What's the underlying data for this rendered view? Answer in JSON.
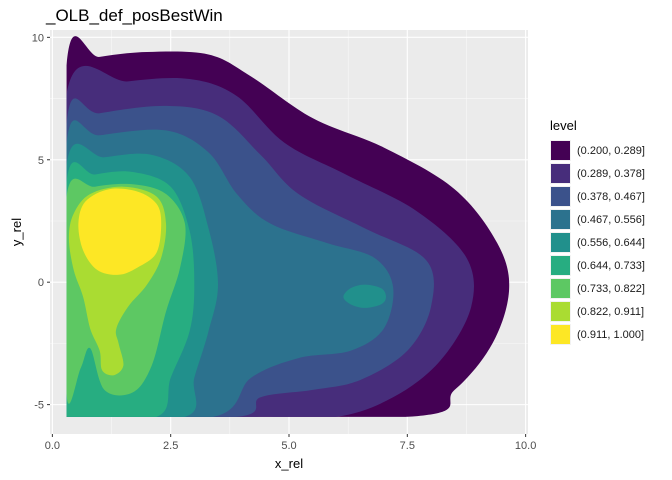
{
  "chart_data": {
    "type": "contour",
    "title": "_OLB_def_posBestWin",
    "xlabel": "x_rel",
    "ylabel": "y_rel",
    "xlim": [
      -0.05,
      10.05
    ],
    "ylim": [
      -6.2,
      10.3
    ],
    "x_ticks": [
      {
        "value": 0.0,
        "label": "0.0"
      },
      {
        "value": 2.5,
        "label": "2.5"
      },
      {
        "value": 5.0,
        "label": "5.0"
      },
      {
        "value": 7.5,
        "label": "7.5"
      },
      {
        "value": 10.0,
        "label": "10.0"
      }
    ],
    "y_ticks": [
      {
        "value": -5,
        "label": "-5"
      },
      {
        "value": 0,
        "label": "0"
      },
      {
        "value": 5,
        "label": "5"
      },
      {
        "value": 10,
        "label": "10"
      }
    ],
    "grid": true,
    "legend": {
      "title": "level",
      "placement": "right",
      "entries": [
        {
          "label": "(0.200, 0.289]",
          "color": "#440154"
        },
        {
          "label": "(0.289, 0.378]",
          "color": "#472D7B"
        },
        {
          "label": "(0.378, 0.467]",
          "color": "#3B528B"
        },
        {
          "label": "(0.467, 0.556]",
          "color": "#2C728E"
        },
        {
          "label": "(0.556, 0.644]",
          "color": "#21908C"
        },
        {
          "label": "(0.644, 0.733]",
          "color": "#27AD81"
        },
        {
          "label": "(0.733, 0.822]",
          "color": "#5DC863"
        },
        {
          "label": "(0.822, 0.911]",
          "color": "#AADC32"
        },
        {
          "label": "(0.911, 1.000]",
          "color": "#FDE725"
        }
      ]
    },
    "regions": [
      {
        "level": "(0.200, 0.289]",
        "points": [
          [
            0.3,
            -5.5
          ],
          [
            7.5,
            -5.5
          ],
          [
            8.5,
            -4.4
          ],
          [
            9.3,
            -2.5
          ],
          [
            9.65,
            -0.3
          ],
          [
            9.4,
            1.6
          ],
          [
            8.5,
            3.8
          ],
          [
            7.0,
            5.5
          ],
          [
            5.5,
            6.7
          ],
          [
            4.2,
            8.4
          ],
          [
            3.3,
            9.3
          ],
          [
            2.0,
            9.4
          ],
          [
            1.0,
            9.2
          ],
          [
            0.3,
            8.9
          ]
        ]
      },
      {
        "level": "(0.289, 0.378]",
        "points": [
          [
            0.3,
            -5.5
          ],
          [
            4.4,
            -5.5
          ],
          [
            6.0,
            -5.5
          ],
          [
            7.2,
            -4.7
          ],
          [
            8.2,
            -3.2
          ],
          [
            8.85,
            -1.0
          ],
          [
            8.75,
            1.0
          ],
          [
            7.7,
            2.9
          ],
          [
            6.2,
            4.4
          ],
          [
            4.9,
            5.7
          ],
          [
            3.9,
            7.6
          ],
          [
            2.9,
            8.3
          ],
          [
            1.6,
            8.2
          ],
          [
            0.3,
            7.7
          ]
        ]
      },
      {
        "level": "(0.378, 0.467]",
        "points": [
          [
            0.3,
            -5.5
          ],
          [
            3.9,
            -5.5
          ],
          [
            4.4,
            -4.7
          ],
          [
            5.5,
            -4.4
          ],
          [
            6.5,
            -4.0
          ],
          [
            7.5,
            -2.8
          ],
          [
            8.0,
            -1.0
          ],
          [
            7.9,
            0.9
          ],
          [
            6.6,
            2.2
          ],
          [
            5.2,
            3.6
          ],
          [
            4.4,
            5.2
          ],
          [
            3.5,
            6.8
          ],
          [
            2.4,
            7.2
          ],
          [
            1.0,
            6.9
          ],
          [
            0.3,
            6.5
          ]
        ]
      },
      {
        "level": "(0.467, 0.556]",
        "points": [
          [
            0.3,
            -5.5
          ],
          [
            3.4,
            -5.5
          ],
          [
            4.2,
            -3.9
          ],
          [
            5.2,
            -3.1
          ],
          [
            6.3,
            -2.8
          ],
          [
            7.0,
            -1.9
          ],
          [
            7.2,
            -0.2
          ],
          [
            6.8,
            1.0
          ],
          [
            5.8,
            1.6
          ],
          [
            4.6,
            2.4
          ],
          [
            3.9,
            3.6
          ],
          [
            3.3,
            5.3
          ],
          [
            2.4,
            6.2
          ],
          [
            1.0,
            6.0
          ],
          [
            0.3,
            5.7
          ]
        ]
      },
      {
        "level": "(0.556, 0.644]",
        "points": [
          [
            0.3,
            -5.5
          ],
          [
            2.8,
            -5.5
          ],
          [
            3.0,
            -3.9
          ],
          [
            3.3,
            -2.0
          ],
          [
            3.5,
            -0.1
          ],
          [
            3.3,
            2.2
          ],
          [
            2.9,
            4.3
          ],
          [
            2.1,
            5.2
          ],
          [
            1.1,
            5.1
          ],
          [
            0.3,
            4.8
          ]
        ]
      },
      {
        "level": "(0.644, 0.733]",
        "points": [
          [
            0.3,
            -5.5
          ],
          [
            2.2,
            -5.5
          ],
          [
            2.5,
            -3.9
          ],
          [
            2.9,
            -2.0
          ],
          [
            3.0,
            -0.1
          ],
          [
            2.9,
            2.1
          ],
          [
            2.5,
            3.9
          ],
          [
            1.7,
            4.5
          ],
          [
            0.9,
            4.4
          ],
          [
            0.3,
            4.1
          ]
        ]
      },
      {
        "level": "(0.733, 0.822]",
        "points": [
          [
            0.3,
            -4.6
          ],
          [
            0.6,
            -3.5
          ],
          [
            0.8,
            -2.7
          ],
          [
            1.1,
            -4.4
          ],
          [
            1.7,
            -4.5
          ],
          [
            2.1,
            -3.4
          ],
          [
            2.4,
            -1.2
          ],
          [
            2.7,
            0.6
          ],
          [
            2.8,
            2.4
          ],
          [
            2.4,
            3.6
          ],
          [
            1.7,
            4.0
          ],
          [
            0.9,
            3.9
          ],
          [
            0.3,
            3.5
          ]
        ]
      },
      {
        "level": "(0.822, 0.911]",
        "points": [
          [
            0.65,
            -0.6
          ],
          [
            0.8,
            -1.9
          ],
          [
            1.0,
            -2.8
          ],
          [
            1.05,
            -3.6
          ],
          [
            1.3,
            -3.8
          ],
          [
            1.5,
            -3.4
          ],
          [
            1.4,
            -2.5
          ],
          [
            1.35,
            -1.9
          ],
          [
            1.6,
            -1.0
          ],
          [
            2.0,
            -0.1
          ],
          [
            2.3,
            1.0
          ],
          [
            2.4,
            2.4
          ],
          [
            2.2,
            3.5
          ],
          [
            1.5,
            3.9
          ],
          [
            0.8,
            3.6
          ],
          [
            0.45,
            2.8
          ],
          [
            0.35,
            1.8
          ],
          [
            0.45,
            0.5
          ]
        ]
      },
      {
        "level": "(0.911, 1.000]",
        "points": [
          [
            0.55,
            2.4
          ],
          [
            0.65,
            1.3
          ],
          [
            0.95,
            0.5
          ],
          [
            1.4,
            0.3
          ],
          [
            1.8,
            0.6
          ],
          [
            2.2,
            1.2
          ],
          [
            2.3,
            2.4
          ],
          [
            2.2,
            3.2
          ],
          [
            1.8,
            3.7
          ],
          [
            1.2,
            3.8
          ],
          [
            0.7,
            3.3
          ]
        ]
      },
      {
        "level": "(0.556, 0.644]",
        "points": [
          [
            6.15,
            -0.6
          ],
          [
            6.3,
            -0.9
          ],
          [
            6.6,
            -1.05
          ],
          [
            6.95,
            -0.9
          ],
          [
            7.05,
            -0.6
          ],
          [
            6.95,
            -0.25
          ],
          [
            6.6,
            -0.1
          ],
          [
            6.3,
            -0.25
          ]
        ]
      }
    ]
  }
}
